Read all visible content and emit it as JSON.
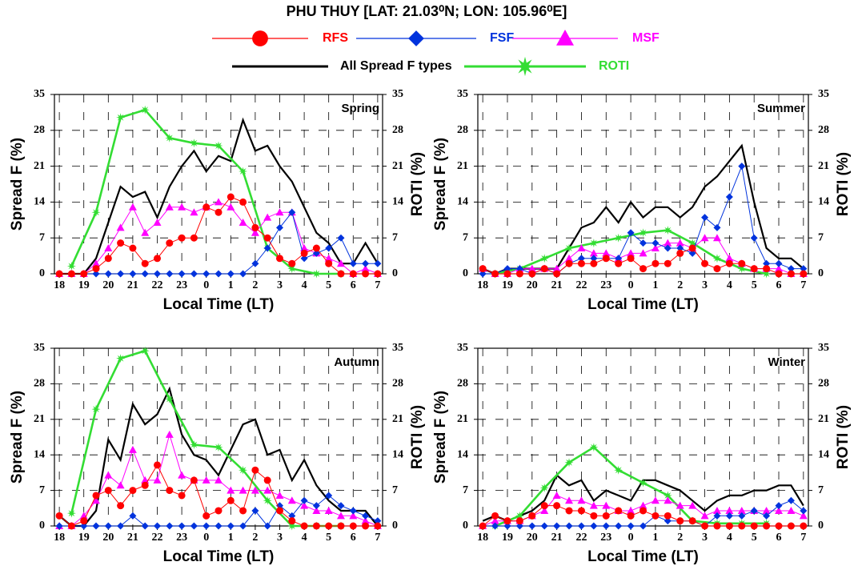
{
  "title": "PHU THUY [LAT: 21.03⁰N; LON: 105.96⁰E]",
  "legend": "top",
  "chart_data": [
    {
      "type": "line",
      "annotation": "Spring",
      "x_label": "Local Time (LT)",
      "y_label": "Spread F (%)",
      "y2_label": "ROTI (%)",
      "grid": true,
      "xlim": [
        17.8,
        31.2
      ],
      "xticks": [
        18,
        19,
        20,
        21,
        22,
        23,
        {
          "value": 24,
          "label": "0"
        },
        {
          "value": 25,
          "label": "1"
        },
        {
          "value": 26,
          "label": "2"
        },
        {
          "value": 27,
          "label": "3"
        },
        {
          "value": 28,
          "label": "4"
        },
        {
          "value": 29,
          "label": "5"
        },
        {
          "value": 30,
          "label": "6"
        },
        {
          "value": 31,
          "label": "7"
        }
      ],
      "ylim": [
        0,
        35
      ],
      "yticks": [
        0,
        7,
        14,
        21,
        28,
        35
      ],
      "y2lim": [
        0,
        35
      ],
      "y2ticks": [
        0,
        7,
        14,
        21,
        28,
        35
      ],
      "x": [
        18,
        18.5,
        19,
        19.5,
        20,
        20.5,
        21,
        21.5,
        22,
        22.5,
        23,
        23.5,
        24,
        24.5,
        25,
        25.5,
        26,
        26.5,
        27,
        27.5,
        28,
        28.5,
        29,
        29.5,
        30,
        30.5,
        31
      ],
      "series": [
        {
          "name": "RFS",
          "color": "#ff0000",
          "marker": "circle",
          "values": [
            0,
            0,
            0,
            1,
            3,
            6,
            5,
            2,
            3,
            6,
            7,
            7,
            13,
            12,
            15,
            14,
            9,
            7,
            3,
            2,
            4,
            5,
            2,
            0,
            0,
            0,
            0
          ]
        },
        {
          "name": "FSF",
          "color": "#0033dd",
          "marker": "diamond",
          "values": [
            0,
            0,
            0,
            0,
            0,
            0,
            0,
            0,
            0,
            0,
            0,
            0,
            0,
            0,
            0,
            0,
            2,
            5,
            9,
            12,
            3,
            4,
            5,
            7,
            2,
            2,
            2
          ]
        },
        {
          "name": "MSF",
          "color": "#ff00ff",
          "marker": "triangle",
          "values": [
            0,
            0,
            0,
            2,
            5,
            9,
            13,
            8,
            10,
            13,
            13,
            12,
            13,
            14,
            13,
            10,
            8,
            11,
            12,
            12,
            5,
            4,
            3,
            2,
            0,
            1,
            0
          ]
        },
        {
          "name": "All Spread F types",
          "color": "#000000",
          "marker": "none",
          "values": [
            0,
            0,
            0,
            3,
            10,
            17,
            15,
            16,
            11,
            17,
            21,
            24,
            20,
            23,
            22,
            30,
            24,
            25,
            21,
            18,
            13,
            8,
            6,
            2,
            2,
            6,
            2
          ]
        },
        {
          "name": "ROTI",
          "color": "#33dd33",
          "marker": "star",
          "axis": "y2",
          "x": [
            18.5,
            19.5,
            20.5,
            21.5,
            22.5,
            23.5,
            24.5,
            25.5,
            26.5,
            27.5,
            28.5,
            29.5
          ],
          "values": [
            1.5,
            12,
            30.5,
            32,
            26.5,
            25.5,
            25,
            20,
            5,
            1,
            0,
            0
          ]
        }
      ]
    },
    {
      "type": "line",
      "annotation": "Summer",
      "x_label": "Local Time (LT)",
      "y_label": "Spread F (%)",
      "y2_label": "ROTI (%)",
      "grid": true,
      "xlim": [
        17.8,
        31.2
      ],
      "xticks": [
        18,
        19,
        20,
        21,
        22,
        23,
        {
          "value": 24,
          "label": "0"
        },
        {
          "value": 25,
          "label": "1"
        },
        {
          "value": 26,
          "label": "2"
        },
        {
          "value": 27,
          "label": "3"
        },
        {
          "value": 28,
          "label": "4"
        },
        {
          "value": 29,
          "label": "5"
        },
        {
          "value": 30,
          "label": "6"
        },
        {
          "value": 31,
          "label": "7"
        }
      ],
      "ylim": [
        0,
        35
      ],
      "yticks": [
        0,
        7,
        14,
        21,
        28,
        35
      ],
      "y2lim": [
        0,
        35
      ],
      "y2ticks": [
        0,
        7,
        14,
        21,
        28,
        35
      ],
      "x": [
        18,
        18.5,
        19,
        19.5,
        20,
        20.5,
        21,
        21.5,
        22,
        22.5,
        23,
        23.5,
        24,
        24.5,
        25,
        25.5,
        26,
        26.5,
        27,
        27.5,
        28,
        28.5,
        29,
        29.5,
        30,
        30.5,
        31
      ],
      "series": [
        {
          "name": "RFS",
          "color": "#ff0000",
          "marker": "circle",
          "values": [
            1,
            0,
            0,
            0,
            0,
            1,
            0,
            2,
            2,
            2,
            3,
            2,
            3,
            1,
            2,
            2,
            4,
            5,
            2,
            1,
            2,
            2,
            1,
            1,
            0,
            0,
            0
          ]
        },
        {
          "name": "FSF",
          "color": "#0033dd",
          "marker": "diamond",
          "values": [
            0,
            0,
            1,
            1,
            0,
            1,
            0,
            2,
            3,
            3,
            3,
            3,
            8,
            6,
            6,
            5,
            5,
            4,
            11,
            9,
            15,
            21,
            7,
            2,
            2,
            1,
            1
          ]
        },
        {
          "name": "MSF",
          "color": "#ff00ff",
          "marker": "triangle",
          "values": [
            1,
            0,
            0,
            1,
            1,
            1,
            1,
            3,
            5,
            4,
            4,
            3,
            4,
            4,
            5,
            6,
            6,
            5,
            7,
            7,
            3,
            2,
            1,
            1,
            1,
            0,
            0
          ]
        },
        {
          "name": "All Spread F types",
          "color": "#000000",
          "marker": "none",
          "values": [
            1,
            0,
            1,
            1,
            1,
            1,
            1,
            5,
            9,
            10,
            13,
            10,
            14,
            11,
            13,
            13,
            11,
            13,
            17,
            19,
            22,
            25,
            14,
            5,
            3,
            3,
            1
          ]
        },
        {
          "name": "ROTI",
          "color": "#33dd33",
          "marker": "star",
          "axis": "y2",
          "x": [
            18.5,
            19.5,
            20.5,
            21.5,
            22.5,
            23.5,
            24.5,
            25.5,
            26.5,
            27.5,
            28.5,
            29.5
          ],
          "values": [
            0,
            1,
            3,
            5,
            6,
            7,
            8,
            8.5,
            6,
            3,
            1,
            0
          ]
        }
      ]
    },
    {
      "type": "line",
      "annotation": "Autumn",
      "x_label": "Local Time (LT)",
      "y_label": "Spread F (%)",
      "y2_label": "ROTI (%)",
      "grid": true,
      "xlim": [
        17.8,
        31.2
      ],
      "xticks": [
        18,
        19,
        20,
        21,
        22,
        23,
        {
          "value": 24,
          "label": "0"
        },
        {
          "value": 25,
          "label": "1"
        },
        {
          "value": 26,
          "label": "2"
        },
        {
          "value": 27,
          "label": "3"
        },
        {
          "value": 28,
          "label": "4"
        },
        {
          "value": 29,
          "label": "5"
        },
        {
          "value": 30,
          "label": "6"
        },
        {
          "value": 31,
          "label": "7"
        }
      ],
      "ylim": [
        0,
        35
      ],
      "yticks": [
        0,
        7,
        14,
        21,
        28,
        35
      ],
      "y2lim": [
        0,
        35
      ],
      "y2ticks": [
        0,
        7,
        14,
        21,
        28,
        35
      ],
      "x": [
        18,
        18.5,
        19,
        19.5,
        20,
        20.5,
        21,
        21.5,
        22,
        22.5,
        23,
        23.5,
        24,
        24.5,
        25,
        25.5,
        26,
        26.5,
        27,
        27.5,
        28,
        28.5,
        29,
        29.5,
        30,
        30.5,
        31
      ],
      "series": [
        {
          "name": "RFS",
          "color": "#ff0000",
          "marker": "circle",
          "values": [
            2,
            0,
            1,
            6,
            7,
            4,
            7,
            8,
            12,
            7,
            6,
            9,
            2,
            3,
            5,
            3,
            11,
            9,
            3,
            1,
            0,
            0,
            0,
            0,
            0,
            0,
            0
          ]
        },
        {
          "name": "FSF",
          "color": "#0033dd",
          "marker": "diamond",
          "values": [
            0,
            0,
            0,
            0,
            0,
            0,
            2,
            0,
            0,
            0,
            0,
            0,
            0,
            0,
            0,
            0,
            3,
            0,
            4,
            2,
            5,
            4,
            6,
            4,
            3,
            2,
            1
          ]
        },
        {
          "name": "MSF",
          "color": "#ff00ff",
          "marker": "triangle",
          "values": [
            0,
            0,
            2,
            5,
            10,
            8,
            15,
            9,
            9,
            18,
            10,
            9,
            9,
            9,
            7,
            7,
            7,
            7,
            6,
            5,
            4,
            3,
            3,
            2,
            2,
            1,
            0
          ]
        },
        {
          "name": "All Spread F types",
          "color": "#000000",
          "marker": "none",
          "values": [
            2,
            0,
            0,
            3,
            17,
            13,
            24,
            20,
            22,
            27,
            18,
            14,
            13,
            10,
            15,
            20,
            21,
            14,
            15,
            9,
            13,
            8,
            5,
            3,
            3,
            3,
            0
          ]
        },
        {
          "name": "ROTI",
          "color": "#33dd33",
          "marker": "star",
          "axis": "y2",
          "x": [
            18.5,
            19.5,
            20.5,
            21.5,
            22.5,
            23.5,
            24.5,
            25.5,
            26.5,
            27.5,
            28.5,
            29.5
          ],
          "values": [
            2.5,
            23,
            33,
            34.5,
            25,
            16,
            15.5,
            11,
            5,
            0,
            0,
            0
          ]
        }
      ]
    },
    {
      "type": "line",
      "annotation": "Winter",
      "x_label": "Local Time (LT)",
      "y_label": "Spread F (%)",
      "y2_label": "ROTI (%)",
      "grid": true,
      "xlim": [
        17.8,
        31.2
      ],
      "xticks": [
        18,
        19,
        20,
        21,
        22,
        23,
        {
          "value": 24,
          "label": "0"
        },
        {
          "value": 25,
          "label": "1"
        },
        {
          "value": 26,
          "label": "2"
        },
        {
          "value": 27,
          "label": "3"
        },
        {
          "value": 28,
          "label": "4"
        },
        {
          "value": 29,
          "label": "5"
        },
        {
          "value": 30,
          "label": "6"
        },
        {
          "value": 31,
          "label": "7"
        }
      ],
      "ylim": [
        0,
        35
      ],
      "yticks": [
        0,
        7,
        14,
        21,
        28,
        35
      ],
      "y2lim": [
        0,
        35
      ],
      "y2ticks": [
        0,
        7,
        14,
        21,
        28,
        35
      ],
      "x": [
        18,
        18.5,
        19,
        19.5,
        20,
        20.5,
        21,
        21.5,
        22,
        22.5,
        23,
        23.5,
        24,
        24.5,
        25,
        25.5,
        26,
        26.5,
        27,
        27.5,
        28,
        28.5,
        29,
        29.5,
        30,
        30.5,
        31
      ],
      "series": [
        {
          "name": "RFS",
          "color": "#ff0000",
          "marker": "circle",
          "values": [
            0,
            2,
            1,
            1,
            2,
            4,
            4,
            3,
            3,
            2,
            2,
            3,
            2,
            3,
            2,
            2,
            1,
            1,
            0,
            0,
            0,
            0,
            0,
            0,
            0,
            0,
            0
          ]
        },
        {
          "name": "FSF",
          "color": "#0033dd",
          "marker": "diamond",
          "values": [
            0,
            0,
            0,
            0,
            0,
            0,
            0,
            0,
            0,
            0,
            0,
            0,
            0,
            0,
            2,
            1,
            1,
            1,
            0,
            2,
            2,
            2,
            3,
            2,
            4,
            5,
            3
          ]
        },
        {
          "name": "MSF",
          "color": "#ff00ff",
          "marker": "triangle",
          "values": [
            0,
            1,
            1,
            1,
            2,
            3,
            6,
            5,
            5,
            4,
            4,
            3,
            3,
            4,
            5,
            5,
            4,
            4,
            2,
            3,
            3,
            3,
            3,
            3,
            3,
            3,
            2
          ]
        },
        {
          "name": "All Spread F types",
          "color": "#000000",
          "marker": "none",
          "values": [
            1,
            2,
            1,
            2,
            3,
            5,
            10,
            8,
            9,
            5,
            7,
            6,
            5,
            9,
            9,
            8,
            7,
            5,
            3,
            5,
            6,
            6,
            7,
            7,
            8,
            8,
            4
          ]
        },
        {
          "name": "ROTI",
          "color": "#33dd33",
          "marker": "star",
          "axis": "y2",
          "x": [
            18.5,
            19.5,
            20.5,
            21.5,
            22.5,
            23.5,
            24.5,
            25.5,
            26.5,
            27.5,
            28.5,
            29.5
          ],
          "values": [
            0,
            2,
            7.5,
            12.5,
            15.5,
            11,
            8.5,
            6,
            1,
            0.5,
            0.5,
            0.5
          ]
        }
      ]
    }
  ]
}
